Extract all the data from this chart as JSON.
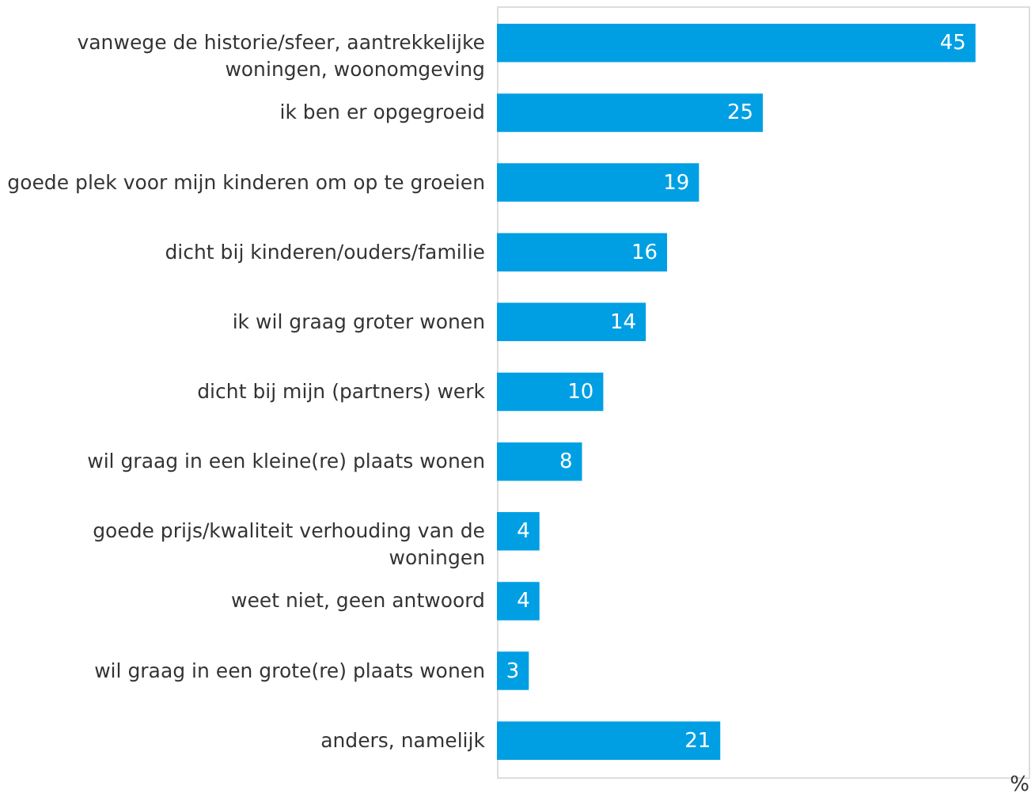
{
  "chart_data": {
    "type": "bar",
    "orientation": "horizontal",
    "categories": [
      "vanwege de historie/sfeer, aantrekkelijke woningen, woonomgeving",
      "ik ben er opgegroeid",
      "goede plek voor mijn kinderen om op te groeien",
      "dicht bij kinderen/ouders/familie",
      "ik wil graag groter wonen",
      "dicht bij mijn (partners) werk",
      "wil graag in een kleine(re) plaats wonen",
      "goede prijs/kwaliteit verhouding van de woningen",
      "weet niet, geen antwoord",
      "wil graag in een grote(re) plaats wonen",
      "anders, namelijk"
    ],
    "values": [
      45,
      25,
      19,
      16,
      14,
      10,
      8,
      4,
      4,
      3,
      21
    ],
    "color": "#009fe3",
    "data_labels": true,
    "xlabel": "%",
    "xlim": [
      0,
      50
    ],
    "grid": false,
    "tick_labels": "y"
  }
}
